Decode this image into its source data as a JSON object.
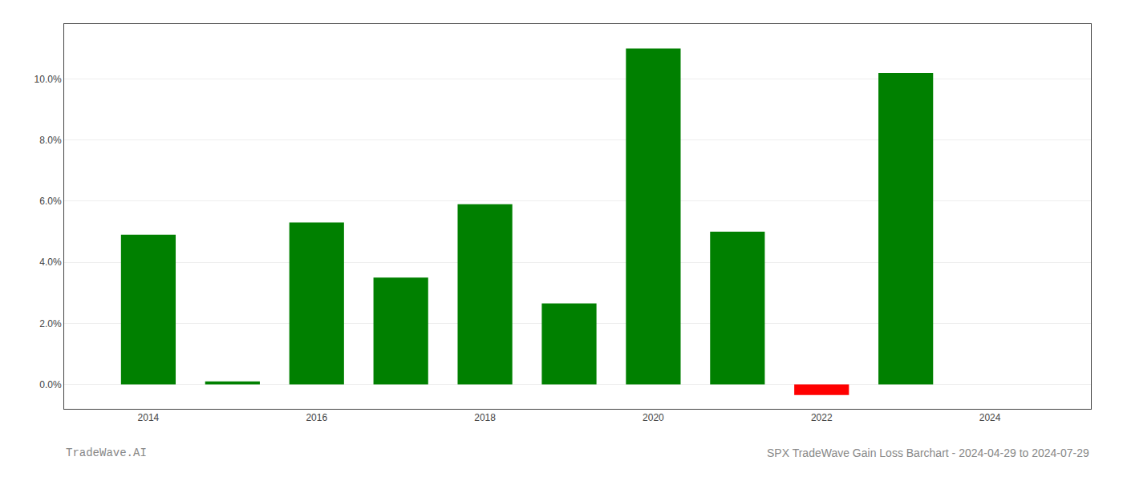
{
  "chart_data": {
    "type": "bar",
    "title": "SPX TradeWave Gain Loss Barchart - 2024-04-29 to 2024-07-29",
    "annotations": [
      "TradeWave.AI"
    ],
    "x": [
      2014,
      2015,
      2016,
      2017,
      2018,
      2019,
      2020,
      2021,
      2022,
      2023
    ],
    "values": [
      0.049,
      0.001,
      0.053,
      0.035,
      0.059,
      0.0265,
      0.11,
      0.05,
      -0.0035,
      0.102
    ],
    "colors": [
      "#008000",
      "#008000",
      "#008000",
      "#008000",
      "#008000",
      "#008000",
      "#008000",
      "#008000",
      "#ff0000",
      "#008000"
    ],
    "xlim": [
      2013.0,
      2025.2
    ],
    "xticks": [
      2014,
      2016,
      2018,
      2020,
      2022,
      2024
    ],
    "ylim": [
      -0.008,
      0.118
    ],
    "yticks": [
      {
        "value": 0.0,
        "label": "0.0%"
      },
      {
        "value": 0.02,
        "label": "2.0%"
      },
      {
        "value": 0.04,
        "label": "4.0%"
      },
      {
        "value": 0.06,
        "label": "6.0%"
      },
      {
        "value": 0.08,
        "label": "8.0%"
      },
      {
        "value": 0.1,
        "label": "10.0%"
      }
    ],
    "grid": true
  }
}
